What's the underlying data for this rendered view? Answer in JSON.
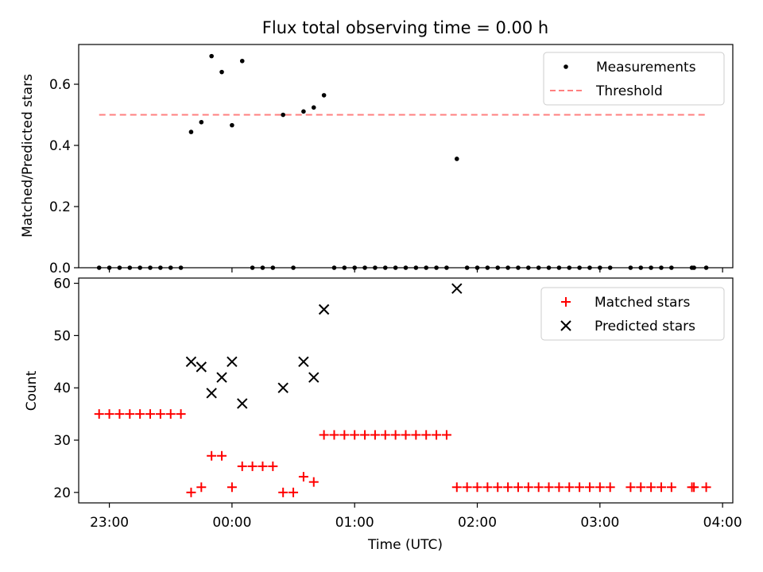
{
  "figure": {
    "title": "Flux total observing time = 0.00 h"
  },
  "chart_data": [
    {
      "type": "scatter",
      "ylabel": "Matched/Predicted stars",
      "xlabel": "",
      "xlim": [
        "22:45",
        "04:05"
      ],
      "ylim": [
        0,
        0.73
      ],
      "yticks": [
        0.0,
        0.2,
        0.4,
        0.6
      ],
      "ytick_labels": [
        "0.0",
        "0.2",
        "0.4",
        "0.6"
      ],
      "grid": false,
      "legend": "top-right",
      "series": [
        {
          "name": "Measurements",
          "marker": "dot",
          "color": "#000000",
          "points": [
            [
              "22:55",
              0.0
            ],
            [
              "23:00",
              0.0
            ],
            [
              "23:05",
              0.0
            ],
            [
              "23:10",
              0.0
            ],
            [
              "23:15",
              0.0
            ],
            [
              "23:20",
              0.0
            ],
            [
              "23:25",
              0.0
            ],
            [
              "23:30",
              0.0
            ],
            [
              "23:35",
              0.0
            ],
            [
              "23:40",
              0.444
            ],
            [
              "23:45",
              0.476
            ],
            [
              "23:50",
              0.692
            ],
            [
              "23:55",
              0.64
            ],
            [
              "00:00",
              0.466
            ],
            [
              "00:05",
              0.676
            ],
            [
              "00:10",
              0.0
            ],
            [
              "00:15",
              0.0
            ],
            [
              "00:20",
              0.0
            ],
            [
              "00:25",
              0.5
            ],
            [
              "00:30",
              0.0
            ],
            [
              "00:35",
              0.511
            ],
            [
              "00:40",
              0.524
            ],
            [
              "00:45",
              0.564
            ],
            [
              "00:50",
              0.0
            ],
            [
              "00:55",
              0.0
            ],
            [
              "01:00",
              0.0
            ],
            [
              "01:05",
              0.0
            ],
            [
              "01:10",
              0.0
            ],
            [
              "01:15",
              0.0
            ],
            [
              "01:20",
              0.0
            ],
            [
              "01:25",
              0.0
            ],
            [
              "01:30",
              0.0
            ],
            [
              "01:35",
              0.0
            ],
            [
              "01:40",
              0.0
            ],
            [
              "01:45",
              0.0
            ],
            [
              "01:50",
              0.356
            ],
            [
              "01:55",
              0.0
            ],
            [
              "02:00",
              0.0
            ],
            [
              "02:05",
              0.0
            ],
            [
              "02:10",
              0.0
            ],
            [
              "02:15",
              0.0
            ],
            [
              "02:20",
              0.0
            ],
            [
              "02:25",
              0.0
            ],
            [
              "02:30",
              0.0
            ],
            [
              "02:35",
              0.0
            ],
            [
              "02:40",
              0.0
            ],
            [
              "02:45",
              0.0
            ],
            [
              "02:50",
              0.0
            ],
            [
              "02:55",
              0.0
            ],
            [
              "03:00",
              0.0
            ],
            [
              "03:05",
              0.0
            ],
            [
              "03:15",
              0.0
            ],
            [
              "03:20",
              0.0
            ],
            [
              "03:25",
              0.0
            ],
            [
              "03:30",
              0.0
            ],
            [
              "03:35",
              0.0
            ],
            [
              "03:45",
              0.0
            ],
            [
              "03:46",
              0.0
            ],
            [
              "03:52",
              0.0
            ]
          ]
        },
        {
          "name": "Threshold",
          "line": "dashed",
          "color": "#ff7f7f",
          "points": [
            [
              "22:55",
              0.5
            ],
            [
              "03:52",
              0.5
            ]
          ]
        }
      ]
    },
    {
      "type": "scatter",
      "ylabel": "Count",
      "xlabel": "Time (UTC)",
      "xlim": [
        "22:45",
        "04:05"
      ],
      "ylim": [
        18,
        61
      ],
      "yticks": [
        20,
        30,
        40,
        50,
        60
      ],
      "ytick_labels": [
        "20",
        "30",
        "40",
        "50",
        "60"
      ],
      "xticks": [
        "23:00",
        "00:00",
        "01:00",
        "02:00",
        "03:00",
        "04:00"
      ],
      "xtick_labels": [
        "23:00",
        "00:00",
        "01:00",
        "02:00",
        "03:00",
        "04:00"
      ],
      "grid": false,
      "legend": "top-right",
      "series": [
        {
          "name": "Matched stars",
          "marker": "plus",
          "color": "#ff0000",
          "points": [
            [
              "22:55",
              35
            ],
            [
              "23:00",
              35
            ],
            [
              "23:05",
              35
            ],
            [
              "23:10",
              35
            ],
            [
              "23:15",
              35
            ],
            [
              "23:20",
              35
            ],
            [
              "23:25",
              35
            ],
            [
              "23:30",
              35
            ],
            [
              "23:35",
              35
            ],
            [
              "23:40",
              20
            ],
            [
              "23:45",
              21
            ],
            [
              "23:50",
              27
            ],
            [
              "23:55",
              27
            ],
            [
              "00:00",
              21
            ],
            [
              "00:05",
              25
            ],
            [
              "00:10",
              25
            ],
            [
              "00:15",
              25
            ],
            [
              "00:20",
              25
            ],
            [
              "00:25",
              20
            ],
            [
              "00:30",
              20
            ],
            [
              "00:35",
              23
            ],
            [
              "00:40",
              22
            ],
            [
              "00:45",
              31
            ],
            [
              "00:50",
              31
            ],
            [
              "00:55",
              31
            ],
            [
              "01:00",
              31
            ],
            [
              "01:05",
              31
            ],
            [
              "01:10",
              31
            ],
            [
              "01:15",
              31
            ],
            [
              "01:20",
              31
            ],
            [
              "01:25",
              31
            ],
            [
              "01:30",
              31
            ],
            [
              "01:35",
              31
            ],
            [
              "01:40",
              31
            ],
            [
              "01:45",
              31
            ],
            [
              "01:50",
              21
            ],
            [
              "01:55",
              21
            ],
            [
              "02:00",
              21
            ],
            [
              "02:05",
              21
            ],
            [
              "02:10",
              21
            ],
            [
              "02:15",
              21
            ],
            [
              "02:20",
              21
            ],
            [
              "02:25",
              21
            ],
            [
              "02:30",
              21
            ],
            [
              "02:35",
              21
            ],
            [
              "02:40",
              21
            ],
            [
              "02:45",
              21
            ],
            [
              "02:50",
              21
            ],
            [
              "02:55",
              21
            ],
            [
              "03:00",
              21
            ],
            [
              "03:05",
              21
            ],
            [
              "03:15",
              21
            ],
            [
              "03:20",
              21
            ],
            [
              "03:25",
              21
            ],
            [
              "03:30",
              21
            ],
            [
              "03:35",
              21
            ],
            [
              "03:45",
              21
            ],
            [
              "03:46",
              21
            ],
            [
              "03:52",
              21
            ]
          ]
        },
        {
          "name": "Predicted stars",
          "marker": "x",
          "color": "#000000",
          "points": [
            [
              "23:40",
              45
            ],
            [
              "23:45",
              44
            ],
            [
              "23:50",
              39
            ],
            [
              "23:55",
              42
            ],
            [
              "00:00",
              45
            ],
            [
              "00:05",
              37
            ],
            [
              "00:25",
              40
            ],
            [
              "00:35",
              45
            ],
            [
              "00:40",
              42
            ],
            [
              "00:45",
              55
            ],
            [
              "01:50",
              59
            ]
          ]
        }
      ]
    }
  ]
}
